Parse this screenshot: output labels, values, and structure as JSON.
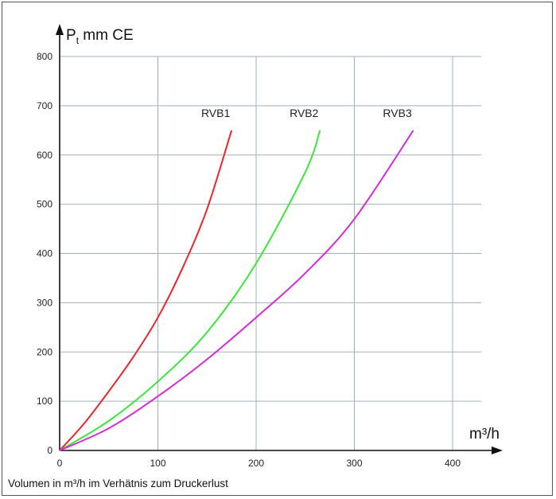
{
  "chart_data": {
    "type": "line",
    "xlabel": "m³/h",
    "ylabel_main": "P",
    "ylabel_sub": "t",
    "ylabel_rest": " mm CE",
    "caption": "Volumen in m³/h im Verhätnis zum Druckerlust",
    "xlim": [
      0,
      400
    ],
    "ylim": [
      0,
      800
    ],
    "x_ticks": [
      "0",
      "100",
      "200",
      "300",
      "400"
    ],
    "y_ticks": [
      "0",
      "100",
      "200",
      "300",
      "400",
      "500",
      "600",
      "700",
      "800"
    ],
    "grid": true,
    "series": [
      {
        "name": "RVB1",
        "color": "#e8262a",
        "points": [
          [
            0,
            0
          ],
          [
            25,
            55
          ],
          [
            50,
            120
          ],
          [
            75,
            190
          ],
          [
            100,
            270
          ],
          [
            125,
            370
          ],
          [
            150,
            490
          ],
          [
            175,
            650
          ]
        ]
      },
      {
        "name": "RVB2",
        "color": "#3ce63c",
        "points": [
          [
            0,
            0
          ],
          [
            50,
            60
          ],
          [
            100,
            140
          ],
          [
            150,
            240
          ],
          [
            200,
            380
          ],
          [
            250,
            565
          ],
          [
            265,
            650
          ]
        ]
      },
      {
        "name": "RVB3",
        "color": "#d42ad4",
        "points": [
          [
            0,
            0
          ],
          [
            50,
            45
          ],
          [
            100,
            110
          ],
          [
            150,
            185
          ],
          [
            200,
            270
          ],
          [
            250,
            360
          ],
          [
            300,
            470
          ],
          [
            360,
            650
          ]
        ]
      }
    ]
  }
}
